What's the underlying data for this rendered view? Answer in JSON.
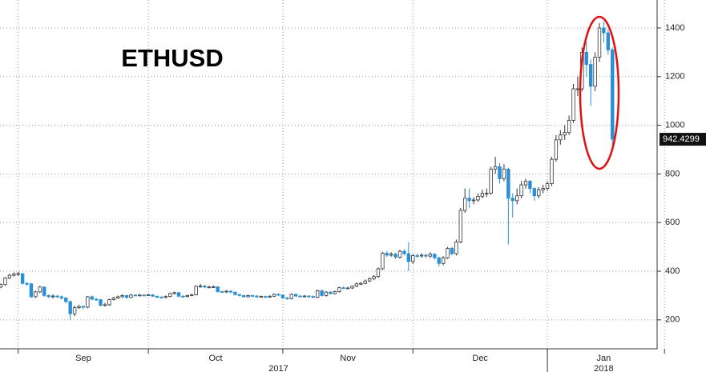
{
  "chart_data": {
    "type": "candlestick",
    "title": "ETHUSD",
    "up_color": "#ffffff",
    "up_stroke": "#333333",
    "down_color": "#2a8fd4",
    "ylim": [
      81,
      1515
    ],
    "yticks": [
      200,
      400,
      600,
      800,
      1000,
      1200,
      1400
    ],
    "xlim": [
      -0.2,
      151.3
    ],
    "xticks": [
      4,
      34,
      65,
      95,
      126,
      153
    ],
    "grid": true,
    "month_labels": [
      {
        "value": 19,
        "label": "Sep"
      },
      {
        "value": 49.5,
        "label": "Oct"
      },
      {
        "value": 80,
        "label": "Nov"
      },
      {
        "value": 110.5,
        "label": "Dec"
      },
      {
        "value": 139,
        "label": "Jan"
      }
    ],
    "year_labels": [
      {
        "value": 64,
        "label": "2017"
      },
      {
        "value": 139,
        "label": "2018"
      }
    ],
    "year_divider": 126,
    "ohlc": [
      [
        335,
        350,
        330,
        345
      ],
      [
        345,
        376,
        340,
        372
      ],
      [
        372,
        390,
        368,
        383
      ],
      [
        383,
        395,
        378,
        388
      ],
      [
        388,
        398,
        380,
        390
      ],
      [
        390,
        392,
        345,
        350
      ],
      [
        350,
        356,
        340,
        348
      ],
      [
        348,
        352,
        290,
        295
      ],
      [
        295,
        320,
        290,
        315
      ],
      [
        315,
        340,
        310,
        335
      ],
      [
        335,
        338,
        295,
        300
      ],
      [
        300,
        305,
        290,
        295
      ],
      [
        295,
        305,
        288,
        298
      ],
      [
        298,
        302,
        290,
        295
      ],
      [
        295,
        300,
        283,
        290
      ],
      [
        290,
        293,
        268,
        275
      ],
      [
        275,
        280,
        200,
        225
      ],
      [
        225,
        258,
        215,
        250
      ],
      [
        250,
        262,
        245,
        255
      ],
      [
        255,
        260,
        245,
        252
      ],
      [
        252,
        298,
        248,
        295
      ],
      [
        295,
        300,
        280,
        285
      ],
      [
        285,
        290,
        278,
        283
      ],
      [
        283,
        286,
        255,
        260
      ],
      [
        260,
        270,
        255,
        262
      ],
      [
        262,
        287,
        258,
        283
      ],
      [
        283,
        295,
        280,
        290
      ],
      [
        290,
        300,
        286,
        295
      ],
      [
        295,
        305,
        290,
        300
      ],
      [
        300,
        303,
        288,
        292
      ],
      [
        292,
        306,
        289,
        302
      ],
      [
        302,
        305,
        296,
        300
      ],
      [
        300,
        306,
        296,
        302
      ],
      [
        302,
        306,
        297,
        301
      ],
      [
        301,
        307,
        298,
        303
      ],
      [
        303,
        306,
        294,
        297
      ],
      [
        297,
        300,
        290,
        293
      ],
      [
        293,
        297,
        289,
        292
      ],
      [
        292,
        300,
        289,
        296
      ],
      [
        296,
        312,
        293,
        308
      ],
      [
        308,
        316,
        304,
        312
      ],
      [
        312,
        314,
        294,
        297
      ],
      [
        297,
        301,
        292,
        296
      ],
      [
        296,
        304,
        292,
        300
      ],
      [
        300,
        307,
        297,
        303
      ],
      [
        303,
        342,
        300,
        338
      ],
      [
        338,
        348,
        332,
        339
      ],
      [
        339,
        343,
        330,
        335
      ],
      [
        335,
        340,
        330,
        335
      ],
      [
        335,
        341,
        331,
        336
      ],
      [
        336,
        338,
        312,
        316
      ],
      [
        316,
        320,
        311,
        315
      ],
      [
        315,
        322,
        311,
        318
      ],
      [
        318,
        321,
        310,
        314
      ],
      [
        314,
        316,
        300,
        304
      ],
      [
        304,
        307,
        296,
        300
      ],
      [
        300,
        303,
        291,
        295
      ],
      [
        295,
        304,
        292,
        300
      ],
      [
        300,
        303,
        294,
        298
      ],
      [
        298,
        301,
        291,
        295
      ],
      [
        295,
        300,
        292,
        296
      ],
      [
        296,
        299,
        290,
        294
      ],
      [
        294,
        301,
        291,
        297
      ],
      [
        297,
        309,
        294,
        305
      ],
      [
        305,
        309,
        298,
        302
      ],
      [
        302,
        305,
        286,
        290
      ],
      [
        290,
        294,
        283,
        287
      ],
      [
        287,
        309,
        284,
        305
      ],
      [
        305,
        308,
        294,
        298
      ],
      [
        298,
        302,
        292,
        296
      ],
      [
        296,
        302,
        292,
        298
      ],
      [
        298,
        302,
        292,
        296
      ],
      [
        296,
        300,
        289,
        293
      ],
      [
        293,
        324,
        290,
        320
      ],
      [
        320,
        323,
        296,
        300
      ],
      [
        300,
        318,
        296,
        314
      ],
      [
        314,
        317,
        304,
        308
      ],
      [
        308,
        320,
        304,
        316
      ],
      [
        316,
        336,
        312,
        332
      ],
      [
        332,
        337,
        326,
        330
      ],
      [
        330,
        336,
        326,
        331
      ],
      [
        331,
        342,
        327,
        338
      ],
      [
        338,
        353,
        334,
        348
      ],
      [
        348,
        356,
        343,
        350
      ],
      [
        350,
        366,
        346,
        360
      ],
      [
        360,
        375,
        355,
        369
      ],
      [
        369,
        384,
        363,
        378
      ],
      [
        378,
        416,
        372,
        410
      ],
      [
        410,
        480,
        405,
        474
      ],
      [
        474,
        482,
        458,
        466
      ],
      [
        466,
        478,
        460,
        470
      ],
      [
        470,
        476,
        450,
        458
      ],
      [
        458,
        488,
        452,
        482
      ],
      [
        482,
        490,
        465,
        472
      ],
      [
        472,
        520,
        400,
        440
      ],
      [
        440,
        470,
        430,
        464
      ],
      [
        464,
        472,
        455,
        463
      ],
      [
        463,
        474,
        455,
        466
      ],
      [
        466,
        472,
        455,
        462
      ],
      [
        462,
        478,
        455,
        470
      ],
      [
        470,
        474,
        448,
        455
      ],
      [
        455,
        460,
        420,
        432
      ],
      [
        432,
        462,
        425,
        455
      ],
      [
        455,
        500,
        450,
        494
      ],
      [
        494,
        500,
        465,
        472
      ],
      [
        472,
        530,
        465,
        520
      ],
      [
        520,
        660,
        515,
        650
      ],
      [
        650,
        740,
        640,
        700
      ],
      [
        700,
        740,
        660,
        690
      ],
      [
        690,
        705,
        675,
        693
      ],
      [
        693,
        720,
        685,
        708
      ],
      [
        708,
        735,
        700,
        720
      ],
      [
        720,
        740,
        705,
        721
      ],
      [
        721,
        830,
        715,
        820
      ],
      [
        820,
        870,
        800,
        830
      ],
      [
        830,
        845,
        760,
        780
      ],
      [
        780,
        840,
        770,
        820
      ],
      [
        820,
        825,
        510,
        700
      ],
      [
        700,
        720,
        620,
        690
      ],
      [
        690,
        740,
        675,
        710
      ],
      [
        710,
        770,
        700,
        755
      ],
      [
        755,
        780,
        740,
        770
      ],
      [
        770,
        775,
        720,
        740
      ],
      [
        740,
        745,
        690,
        710
      ],
      [
        710,
        745,
        700,
        735
      ],
      [
        735,
        755,
        720,
        740
      ],
      [
        740,
        770,
        730,
        760
      ],
      [
        760,
        870,
        750,
        860
      ],
      [
        860,
        960,
        850,
        940
      ],
      [
        940,
        980,
        920,
        960
      ],
      [
        960,
        1000,
        940,
        970
      ],
      [
        970,
        1040,
        960,
        1020
      ],
      [
        1020,
        1170,
        1010,
        1150
      ],
      [
        1150,
        1200,
        1120,
        1150
      ],
      [
        1150,
        1320,
        1140,
        1300
      ],
      [
        1300,
        1340,
        1200,
        1250
      ],
      [
        1250,
        1270,
        1080,
        1160
      ],
      [
        1160,
        1300,
        1140,
        1280
      ],
      [
        1280,
        1420,
        1260,
        1400
      ],
      [
        1400,
        1425,
        1340,
        1380
      ],
      [
        1380,
        1395,
        1290,
        1310
      ],
      [
        1310,
        1320,
        920,
        942.4299
      ]
    ]
  }
}
